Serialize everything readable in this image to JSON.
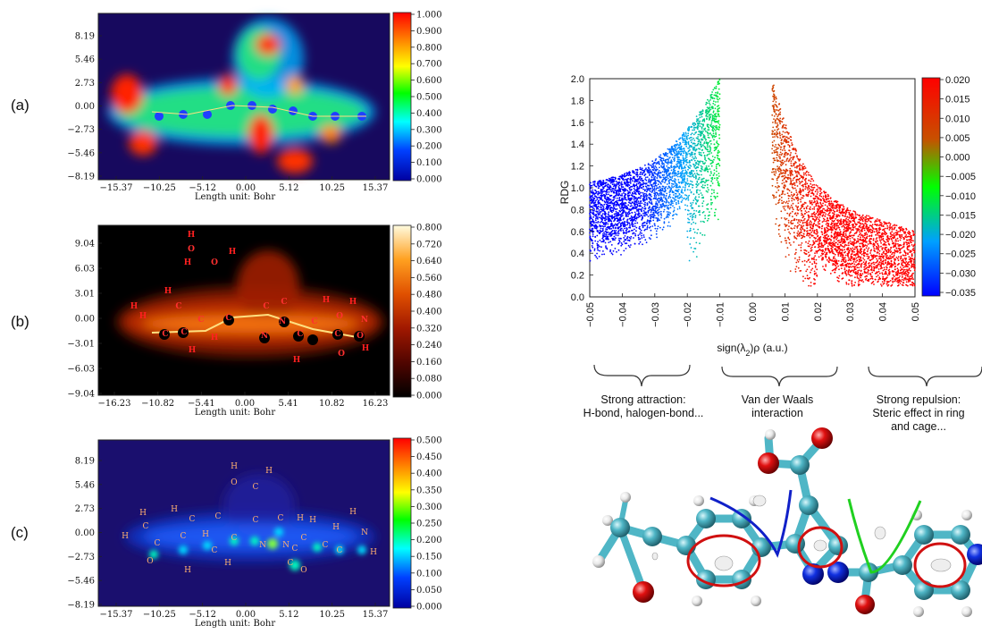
{
  "panel_labels": [
    "(a)",
    "(b)",
    "(c)"
  ],
  "maps": [
    {
      "y_ticks": [
        "8.19",
        "5.46",
        "2.73",
        "0.00",
        "-2.73",
        "-5.46",
        "-8.19"
      ],
      "x_ticks": [
        "-15.37",
        "-10.25",
        "-5.12",
        "0.00",
        "5.12",
        "10.25",
        "15.37"
      ],
      "xlabel": "Length unit: Bohr",
      "colorbar_ticks": [
        "1.000",
        "0.900",
        "0.800",
        "0.700",
        "0.600",
        "0.500",
        "0.400",
        "0.300",
        "0.200",
        "0.100",
        "0.000"
      ],
      "colorbar_colors": [
        "#ff0000",
        "#ff8000",
        "#ffff00",
        "#00ff00",
        "#00ffff",
        "#0040ff",
        "#0000a0"
      ],
      "background": "#17095e",
      "atom_labels": []
    },
    {
      "y_ticks": [
        "9.04",
        "6.03",
        "3.01",
        "0.00",
        "-3.01",
        "-6.03",
        "-9.04"
      ],
      "x_ticks": [
        "-16.23",
        "-10.82",
        "-5.41",
        "0.00",
        "5.41",
        "10.82",
        "16.23"
      ],
      "xlabel": "Length unit: Bohr",
      "colorbar_ticks": [
        "0.800",
        "0.720",
        "0.640",
        "0.560",
        "0.480",
        "0.400",
        "0.320",
        "0.240",
        "0.160",
        "0.080",
        "0.000"
      ],
      "colorbar_colors": [
        "#fffbe0",
        "#ffe080",
        "#ffa020",
        "#e05000",
        "#a01800",
        "#500500",
        "#000000"
      ],
      "background": "#000000",
      "atom_labels": [
        "H",
        "O",
        "H",
        "O",
        "H",
        "H",
        "C",
        "H",
        "H",
        "C",
        "C",
        "H",
        "H",
        "C",
        "C",
        "C",
        "N",
        "N",
        "C",
        "C",
        "C",
        "C",
        "H",
        "O",
        "H",
        "H",
        "O",
        "O",
        "N",
        "H"
      ]
    },
    {
      "y_ticks": [
        "8.19",
        "5.46",
        "2.73",
        "0.00",
        "-2.73",
        "-5.46",
        "-8.19"
      ],
      "x_ticks": [
        "-15.37",
        "-10.25",
        "-5.12",
        "0.00",
        "5.12",
        "10.25",
        "15.37"
      ],
      "xlabel": "Length unit: Bohr",
      "colorbar_ticks": [
        "0.500",
        "0.450",
        "0.400",
        "0.350",
        "0.300",
        "0.250",
        "0.200",
        "0.150",
        "0.100",
        "0.050",
        "0.000"
      ],
      "colorbar_colors": [
        "#ff0000",
        "#ff8000",
        "#ffff00",
        "#00ff00",
        "#00ffff",
        "#0040ff",
        "#0000a0"
      ],
      "background": "#1a0f6e",
      "atom_labels": [
        "H",
        "O",
        "C",
        "H",
        "H",
        "C",
        "H",
        "C",
        "C",
        "H",
        "C",
        "H",
        "C",
        "H",
        "H",
        "O",
        "C",
        "C",
        "C",
        "C",
        "N",
        "N",
        "C",
        "C",
        "C",
        "C",
        "N",
        "H",
        "H",
        "O",
        "H",
        "H",
        "C",
        "H"
      ]
    }
  ],
  "chart_data": {
    "type": "scatter",
    "xlabel": "sign(λ2)ρ (a.u.)",
    "ylabel": "RDG",
    "xlim": [
      -0.05,
      0.05
    ],
    "ylim": [
      0.0,
      2.0
    ],
    "x_ticks": [
      "-0.05",
      "-0.04",
      "-0.03",
      "-0.02",
      "-0.01",
      "0.00",
      "0.01",
      "0.02",
      "0.03",
      "0.04",
      "0.05"
    ],
    "y_ticks": [
      "2.0",
      "1.8",
      "1.6",
      "1.4",
      "1.2",
      "1.0",
      "0.8",
      "0.6",
      "0.4",
      "0.2",
      "0.0"
    ],
    "colorbar_ticks": [
      "0.020",
      "0.015",
      "0.010",
      "0.005",
      "0.000",
      "-0.005",
      "-0.010",
      "-0.015",
      "-0.020",
      "-0.025",
      "-0.030",
      "-0.035"
    ],
    "color_range": [
      -0.035,
      0.02
    ],
    "colorbar_colors": [
      "#ff0000",
      "#c85000",
      "#00ff00",
      "#00a0ff",
      "#0000ff"
    ],
    "series": [
      {
        "values": [
          [
            -0.05,
            1.05
          ],
          [
            -0.045,
            1.08
          ],
          [
            -0.04,
            1.12
          ],
          [
            -0.035,
            1.18
          ],
          [
            -0.03,
            1.26
          ],
          [
            -0.025,
            1.38
          ],
          [
            -0.02,
            1.54
          ],
          [
            -0.015,
            1.75
          ],
          [
            -0.01,
            2.0
          ]
        ]
      },
      {
        "values": [
          [
            0.006,
            2.0
          ],
          [
            0.01,
            1.6
          ],
          [
            0.015,
            1.25
          ],
          [
            0.02,
            1.02
          ],
          [
            0.025,
            0.9
          ],
          [
            0.03,
            0.8
          ],
          [
            0.04,
            0.7
          ],
          [
            0.05,
            0.6
          ]
        ]
      }
    ],
    "grid": false
  },
  "brace_labels": [
    {
      "line1": "Strong attraction:",
      "line2": "H-bond, halogen-bond..."
    },
    {
      "line1": "Van der Waals",
      "line2": "interaction"
    },
    {
      "line1": "Strong repulsion:",
      "line2": "Steric effect in ring",
      "line3": "and cage..."
    }
  ],
  "colors": {
    "carbon": "#4fb6c6",
    "oxygen": "#e01010",
    "nitrogen": "#1030e0",
    "hydrogen": "#f0f0f0",
    "ring_marker": "#d01010",
    "hbond_curve": "#1020c8",
    "vdw_curve": "#20d020"
  }
}
